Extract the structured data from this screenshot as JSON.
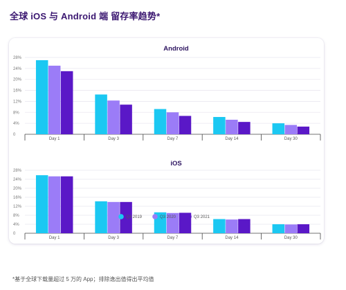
{
  "page": {
    "title": "全球 iOS 与 Android 端 留存率趋势*",
    "footnote": "*基于全球下载量超过 5 万的 App；排除逸出值得出平均值"
  },
  "colors": {
    "q3_2019": "#1bc8f2",
    "q3_2020": "#9b7cf7",
    "q3_2021": "#5a18c7"
  },
  "chart_data": [
    {
      "type": "bar",
      "title": "Android",
      "categories": [
        "Day 1",
        "Day 3",
        "Day 7",
        "Day 14",
        "Day 30"
      ],
      "series": [
        {
          "name": "Q3 2019",
          "values": [
            27.0,
            14.5,
            9.2,
            6.3,
            4.0
          ]
        },
        {
          "name": "Q3 2020",
          "values": [
            25.0,
            12.3,
            8.0,
            5.3,
            3.4
          ]
        },
        {
          "name": "Q3 2021",
          "values": [
            23.0,
            10.8,
            6.7,
            4.5,
            2.8
          ]
        }
      ],
      "yticks": [
        "0",
        "4%",
        "8%",
        "12%",
        "16%",
        "20%",
        "24%",
        "28%"
      ],
      "ylim": [
        0,
        28
      ],
      "grid": true
    },
    {
      "type": "bar",
      "title": "iOS",
      "categories": [
        "Day 1",
        "Day 3",
        "Day 7",
        "Day 14",
        "Day 30"
      ],
      "series": [
        {
          "name": "Q3 2019",
          "values": [
            25.8,
            14.2,
            9.3,
            6.3,
            4.0
          ]
        },
        {
          "name": "Q3 2020",
          "values": [
            25.3,
            13.9,
            9.0,
            6.1,
            3.9
          ]
        },
        {
          "name": "Q3 2021",
          "values": [
            25.3,
            13.9,
            9.1,
            6.3,
            4.0
          ]
        }
      ],
      "yticks": [
        "0",
        "4%",
        "8%",
        "12%",
        "16%",
        "20%",
        "24%",
        "28%"
      ],
      "ylim": [
        0,
        28
      ],
      "grid": true
    }
  ],
  "legend": {
    "placement": "bottom-center",
    "items": [
      "Q3 2019",
      "Q3 2020",
      "Q3 2021"
    ]
  }
}
